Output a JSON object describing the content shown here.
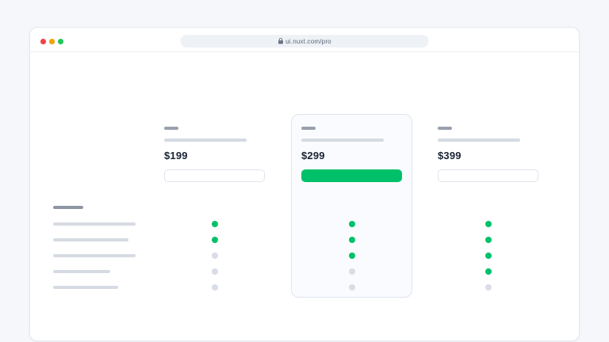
{
  "browser": {
    "url": "ui.nuxt.com/pro",
    "traffic_lights": [
      {
        "name": "close",
        "color": "#ef4444"
      },
      {
        "name": "minimize",
        "color": "#f0a30a"
      },
      {
        "name": "zoom",
        "color": "#22c55e"
      }
    ]
  },
  "pricing": {
    "plans": [
      {
        "price": "$199",
        "button_style": "outline",
        "highlighted": false,
        "features_included": [
          true,
          true,
          false,
          false,
          false
        ]
      },
      {
        "price": "$299",
        "button_style": "solid",
        "highlighted": true,
        "features_included": [
          true,
          true,
          true,
          false,
          false
        ]
      },
      {
        "price": "$399",
        "button_style": "outline",
        "highlighted": false,
        "features_included": [
          true,
          true,
          true,
          true,
          false
        ]
      }
    ],
    "feature_row_count": 5
  },
  "colors": {
    "accent_green": "#00c16a",
    "dot_excluded": "#d9dde5",
    "page_background": "#f5f7fa",
    "highlight_card_background": "#fafbfe"
  }
}
